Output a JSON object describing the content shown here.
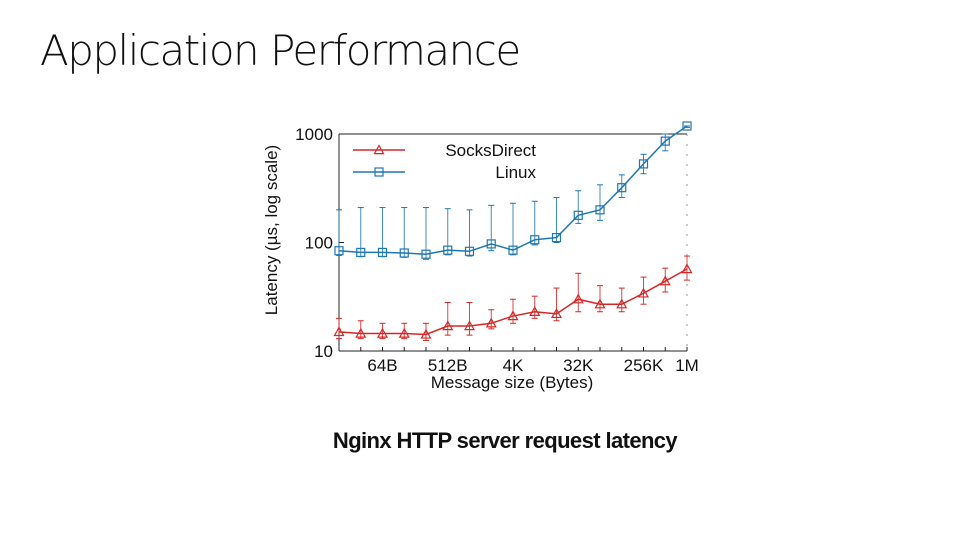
{
  "slide": {
    "title": "Application Performance",
    "caption": "Nginx HTTP server request latency"
  },
  "chart_data": {
    "type": "line",
    "title": "",
    "xlabel": "Message size (Bytes)",
    "ylabel": "Latency (µs, log scale)",
    "y_scale": "log",
    "ylim": [
      10,
      1000
    ],
    "y_ticks": [
      "10",
      "100",
      "1000"
    ],
    "x": [
      "16B",
      "32B",
      "64B",
      "128B",
      "256B",
      "512B",
      "1K",
      "2K",
      "4K",
      "8K",
      "16K",
      "32K",
      "64K",
      "128K",
      "256K",
      "512K",
      "1M"
    ],
    "x_tick_labels": [
      "64B",
      "512B",
      "4K",
      "32K",
      "256K",
      "1M"
    ],
    "legend_position": "top-left",
    "grid": false,
    "series": [
      {
        "name": "SocksDirect",
        "marker": "triangle",
        "color": "#d62728",
        "values": [
          15,
          14.5,
          14.5,
          14.5,
          14.2,
          17,
          17,
          18,
          21,
          23,
          22,
          30,
          27,
          27,
          34,
          44,
          57
        ],
        "err_low": [
          13,
          13,
          13,
          13,
          12.5,
          14,
          14,
          16,
          18,
          20,
          19,
          23,
          23,
          23,
          27,
          35,
          45
        ],
        "err_high": [
          20,
          19,
          18,
          18,
          18,
          28,
          28,
          24,
          30,
          32,
          38,
          52,
          40,
          38,
          48,
          58,
          75
        ]
      },
      {
        "name": "Linux",
        "marker": "square",
        "color": "#1f77b4",
        "values": [
          84,
          81,
          81,
          80,
          78,
          85,
          83,
          97,
          85,
          106,
          111,
          178,
          200,
          320,
          530,
          860,
          1400
        ],
        "err_low": [
          76,
          74,
          74,
          73,
          70,
          77,
          75,
          84,
          77,
          95,
          100,
          150,
          160,
          260,
          430,
          700,
          1150
        ],
        "err_high": [
          200,
          210,
          210,
          210,
          210,
          205,
          200,
          220,
          230,
          240,
          260,
          300,
          340,
          420,
          650,
          1000,
          1600
        ]
      }
    ]
  }
}
